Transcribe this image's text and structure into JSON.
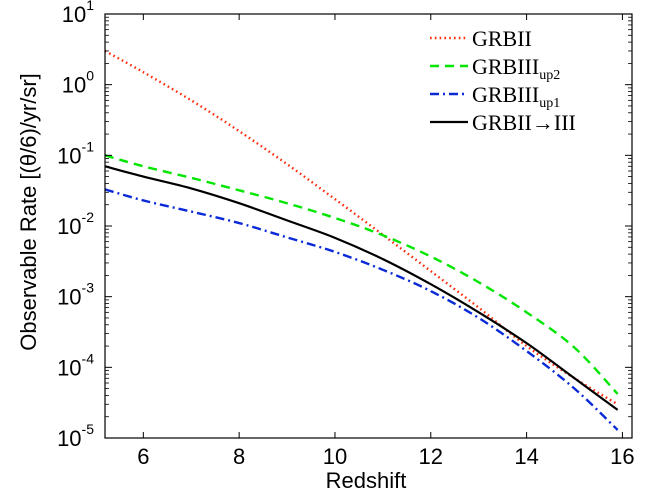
{
  "chart_data": {
    "type": "line",
    "xlabel": "Redshift",
    "ylabel": "Observable Rate [(θ/6)/yr/sr]",
    "xlim": [
      5.2,
      16.2
    ],
    "ylim": [
      1e-05,
      10
    ],
    "yscale": "log",
    "grid": false,
    "legend_position": "top-right",
    "x_ticks": [
      6,
      8,
      10,
      12,
      14,
      16
    ],
    "x_tick_labels": [
      "6",
      "8",
      "10",
      "12",
      "14",
      "16"
    ],
    "y_tick_exponents": [
      -5,
      -4,
      -3,
      -2,
      -1,
      0,
      1
    ],
    "y_tick_base": "10",
    "y_tick_labels": [
      "10^-5",
      "10^-4",
      "10^-3",
      "10^-2",
      "10^-1",
      "10^0",
      "10^1"
    ],
    "series": [
      {
        "name": "GRBII",
        "legend_main": "GRBII",
        "legend_sub": "",
        "legend_suffix": "",
        "color": "#ff2a0a",
        "style": "dotted",
        "x": [
          5.2,
          6,
          7,
          8,
          9,
          10,
          11,
          12,
          13,
          14,
          15,
          15.9
        ],
        "y": [
          3.0,
          1.5,
          0.6,
          0.22,
          0.075,
          0.024,
          0.0075,
          0.0023,
          0.0007,
          0.0002,
          7e-05,
          3e-05
        ]
      },
      {
        "name": "GRBIII up2",
        "legend_main": "GRBIII",
        "legend_sub": "up2",
        "legend_suffix": "",
        "color": "#00e600",
        "style": "dashed",
        "x": [
          5.2,
          6,
          7,
          8,
          9,
          10,
          11,
          12,
          13,
          14,
          15,
          15.9
        ],
        "y": [
          0.1,
          0.07,
          0.048,
          0.032,
          0.021,
          0.013,
          0.0074,
          0.0037,
          0.0016,
          0.0006,
          0.00019,
          4.2e-05
        ]
      },
      {
        "name": "GRBIII up1",
        "legend_main": "GRBIII",
        "legend_sub": "up1",
        "legend_suffix": "",
        "color": "#0a2ad8",
        "style": "dashdot",
        "x": [
          5.2,
          6,
          7,
          8,
          9,
          10,
          11,
          12,
          13,
          14,
          15,
          15.9
        ],
        "y": [
          0.033,
          0.023,
          0.016,
          0.011,
          0.0069,
          0.0043,
          0.0024,
          0.0012,
          0.0005,
          0.00017,
          5e-05,
          1.3e-05
        ]
      },
      {
        "name": "GRBII→III",
        "legend_main": "GRBII",
        "legend_sub": "",
        "legend_suffix": "→III",
        "color": "#000000",
        "style": "solid",
        "x": [
          5.2,
          6,
          7,
          8,
          9,
          10,
          11,
          12,
          13,
          14,
          15,
          15.9
        ],
        "y": [
          0.07,
          0.05,
          0.034,
          0.021,
          0.012,
          0.0068,
          0.0034,
          0.0015,
          0.0006,
          0.00022,
          7e-05,
          2.5e-05
        ]
      }
    ]
  }
}
